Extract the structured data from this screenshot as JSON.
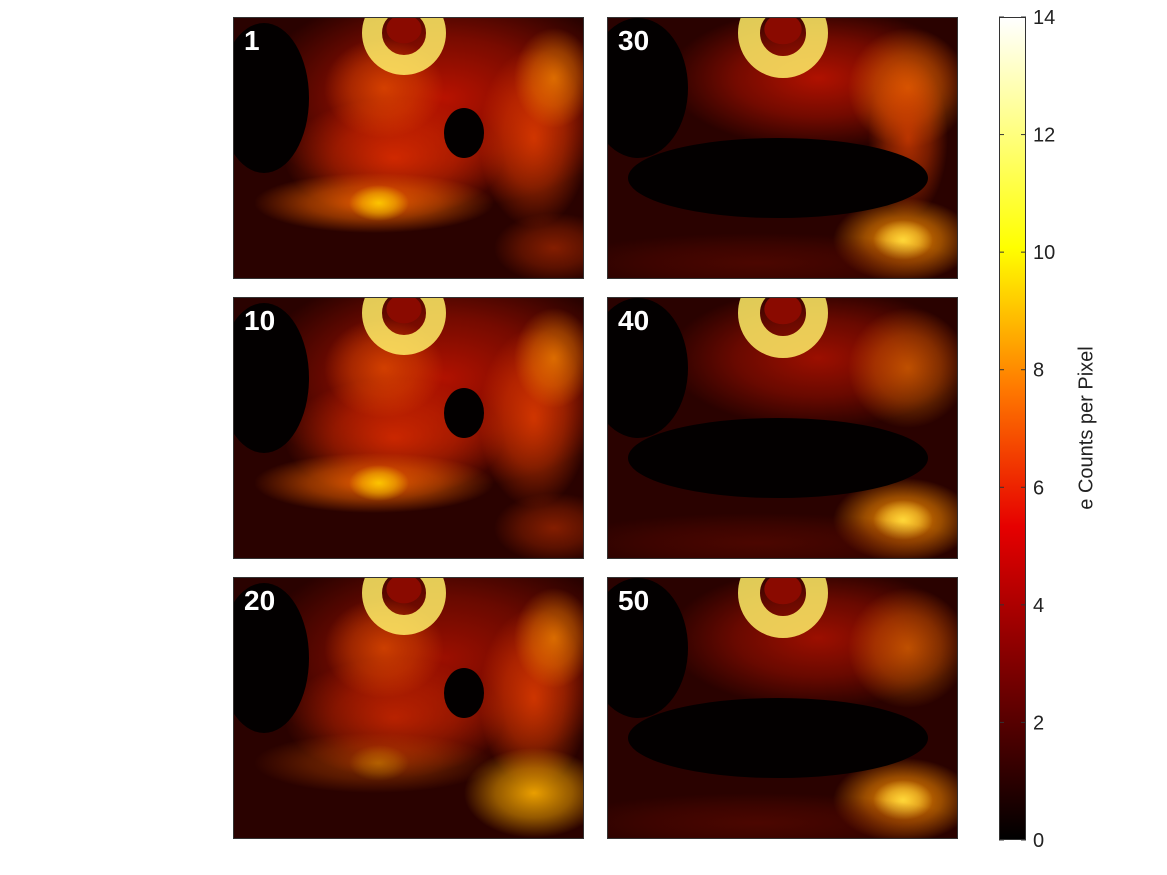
{
  "chart_data": {
    "type": "heatmap",
    "panels": [
      {
        "label": "1"
      },
      {
        "label": "30"
      },
      {
        "label": "10"
      },
      {
        "label": "40"
      },
      {
        "label": "20"
      },
      {
        "label": "50"
      }
    ],
    "colorbar": {
      "label": "e Counts per Pixel",
      "range": [
        0,
        14
      ],
      "ticks": [
        "0",
        "2",
        "4",
        "6",
        "8",
        "10",
        "12",
        "14"
      ],
      "colormap": "hot"
    }
  },
  "colors": {
    "low": "#000000",
    "mid_red": "#e60000",
    "mid_orange": "#ff7a00",
    "high_yellow": "#ffff00",
    "max": "#ffffff"
  }
}
